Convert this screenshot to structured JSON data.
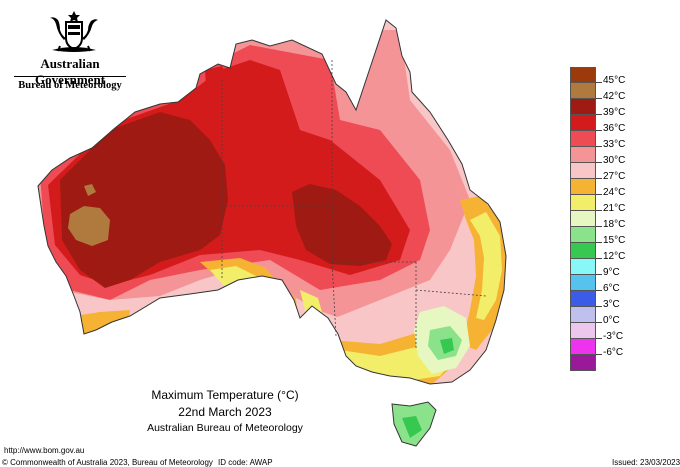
{
  "header": {
    "government": "Australian Government",
    "bureau": "Bureau of Meteorology"
  },
  "map": {
    "title": "Maximum Temperature (°C)",
    "date": "22nd March 2023",
    "source": "Australian Bureau of Meteorology",
    "region": "Australia"
  },
  "legend": {
    "items": [
      {
        "label": "45°C",
        "color": "#9c3a0c"
      },
      {
        "label": "42°C",
        "color": "#b07a3e"
      },
      {
        "label": "39°C",
        "color": "#9e1a12"
      },
      {
        "label": "36°C",
        "color": "#d41b1b"
      },
      {
        "label": "33°C",
        "color": "#ee4b55"
      },
      {
        "label": "30°C",
        "color": "#f59496"
      },
      {
        "label": "27°C",
        "color": "#f8c6c6"
      },
      {
        "label": "24°C",
        "color": "#f5b233"
      },
      {
        "label": "21°C",
        "color": "#f2ee6a"
      },
      {
        "label": "18°C",
        "color": "#e6f7c1"
      },
      {
        "label": "15°C",
        "color": "#8ae38a"
      },
      {
        "label": "12°C",
        "color": "#36c850"
      },
      {
        "label": "9°C",
        "color": "#88f7f7"
      },
      {
        "label": "6°C",
        "color": "#56c2ee"
      },
      {
        "label": "3°C",
        "color": "#3c5be6"
      },
      {
        "label": "0°C",
        "color": "#c0c0ee"
      },
      {
        "label": "-3°C",
        "color": "#ecc6ec"
      },
      {
        "label": "-6°C",
        "color": "#ee33ee"
      },
      {
        "label": "",
        "color": "#9a189a"
      }
    ]
  },
  "footer": {
    "url": "http://www.bom.gov.au",
    "copyright": "© Commonwealth of Australia 2023, Bureau of Meteorology",
    "id_code": "ID code: AWAP",
    "issued": "Issued: 23/03/2023"
  }
}
